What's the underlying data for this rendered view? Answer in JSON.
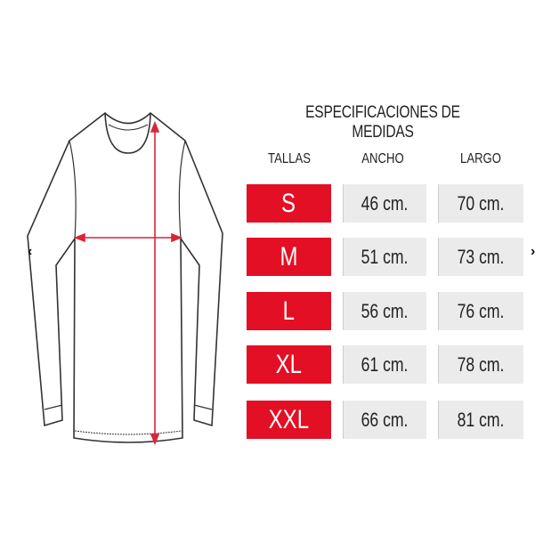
{
  "title": "ESPECIFICACIONES DE MEDIDAS",
  "headers": {
    "tallas": "TALLAS",
    "ancho": "ANCHO",
    "largo": "LARGO"
  },
  "rows": [
    {
      "talla": "S",
      "ancho": "46 cm.",
      "largo": "70 cm."
    },
    {
      "talla": "M",
      "ancho": "51 cm.",
      "largo": "73 cm."
    },
    {
      "talla": "L",
      "ancho": "56 cm.",
      "largo": "76 cm."
    },
    {
      "talla": "XL",
      "ancho": "61 cm.",
      "largo": "78 cm."
    },
    {
      "talla": "XXL",
      "ancho": "66 cm.",
      "largo": "81 cm."
    }
  ],
  "nav": {
    "prev": "‹",
    "next": "›"
  },
  "colors": {
    "accent": "#e30f24",
    "cell": "#ebebeb"
  }
}
